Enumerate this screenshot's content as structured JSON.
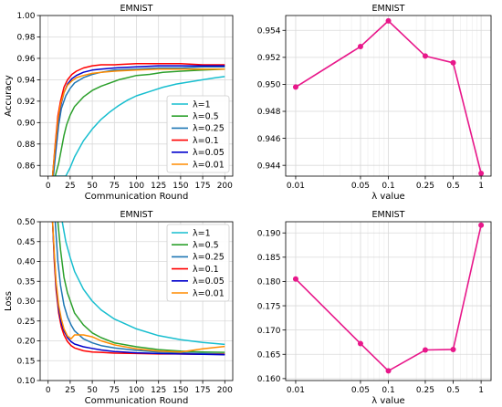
{
  "chart_data": [
    {
      "type": "line",
      "title": "EMNIST",
      "xlabel": "Communication Round",
      "ylabel": "Accuracy",
      "xlim": [
        -9,
        209
      ],
      "ylim": [
        0.85,
        1.0
      ],
      "xticks": [
        0,
        25,
        50,
        75,
        100,
        125,
        150,
        175,
        200
      ],
      "yticks": [
        0.86,
        0.88,
        0.9,
        0.92,
        0.94,
        0.96,
        0.98,
        1.0
      ],
      "ytick_labels": [
        "0.86",
        "0.88",
        "0.90",
        "0.92",
        "0.94",
        "0.96",
        "0.98",
        "1.00"
      ],
      "grid": true,
      "legend": "lower right",
      "series": [
        {
          "name": "λ=1",
          "color": "#17becf",
          "x": [
            5,
            10,
            15,
            20,
            25,
            30,
            40,
            50,
            60,
            70,
            80,
            90,
            100,
            115,
            130,
            145,
            160,
            175,
            190,
            200
          ],
          "y": [
            0.85,
            0.85,
            0.85,
            0.85,
            0.858,
            0.868,
            0.883,
            0.894,
            0.903,
            0.91,
            0.916,
            0.921,
            0.925,
            0.929,
            0.933,
            0.936,
            0.938,
            0.94,
            0.942,
            0.943
          ]
        },
        {
          "name": "λ=0.5",
          "color": "#2ca02c",
          "x": [
            8,
            12,
            15,
            18,
            21,
            25,
            30,
            40,
            50,
            60,
            70,
            80,
            90,
            100,
            115,
            130,
            150,
            175,
            200
          ],
          "y": [
            0.85,
            0.862,
            0.875,
            0.888,
            0.898,
            0.907,
            0.915,
            0.924,
            0.93,
            0.934,
            0.937,
            0.94,
            0.942,
            0.944,
            0.945,
            0.947,
            0.948,
            0.949,
            0.95
          ]
        },
        {
          "name": "λ=0.25",
          "color": "#1f77b4",
          "x": [
            6,
            9,
            12,
            15,
            20,
            25,
            30,
            40,
            50,
            60,
            75,
            100,
            125,
            150,
            175,
            200
          ],
          "y": [
            0.85,
            0.875,
            0.898,
            0.913,
            0.925,
            0.932,
            0.937,
            0.942,
            0.945,
            0.947,
            0.949,
            0.95,
            0.951,
            0.951,
            0.952,
            0.952
          ]
        },
        {
          "name": "λ=0.1",
          "color": "#ff0000",
          "x": [
            5,
            8,
            11,
            14,
            18,
            22,
            27,
            32,
            40,
            50,
            60,
            75,
            100,
            125,
            150,
            175,
            200
          ],
          "y": [
            0.85,
            0.88,
            0.906,
            0.92,
            0.933,
            0.94,
            0.945,
            0.948,
            0.951,
            0.953,
            0.954,
            0.954,
            0.955,
            0.955,
            0.955,
            0.954,
            0.954
          ]
        },
        {
          "name": "λ=0.05",
          "color": "#0000cc",
          "x": [
            5,
            8,
            11,
            14,
            18,
            22,
            27,
            32,
            40,
            50,
            60,
            75,
            100,
            125,
            150,
            175,
            200
          ],
          "y": [
            0.85,
            0.875,
            0.9,
            0.915,
            0.928,
            0.936,
            0.941,
            0.944,
            0.947,
            0.949,
            0.95,
            0.951,
            0.952,
            0.953,
            0.953,
            0.953,
            0.953
          ]
        },
        {
          "name": "λ=0.01",
          "color": "#ff8c00",
          "x": [
            5,
            8,
            11,
            14,
            18,
            22,
            27,
            32,
            40,
            50,
            60,
            75,
            100,
            125,
            150,
            175,
            200
          ],
          "y": [
            0.85,
            0.878,
            0.902,
            0.917,
            0.928,
            0.935,
            0.939,
            0.942,
            0.944,
            0.946,
            0.947,
            0.948,
            0.949,
            0.95,
            0.95,
            0.95,
            0.95
          ]
        }
      ]
    },
    {
      "type": "line",
      "title": "EMNIST",
      "xlabel": "λ  value",
      "ylabel": "",
      "xscale": "log",
      "x_categories": [
        "0.01",
        "0.05",
        "0.1",
        "0.25",
        "0.5",
        "1"
      ],
      "x": [
        0.01,
        0.05,
        0.1,
        0.25,
        0.5,
        1
      ],
      "xlim": [
        0.0078,
        1.28
      ],
      "ylim": [
        0.9432,
        0.9551
      ],
      "yticks": [
        0.944,
        0.946,
        0.948,
        0.95,
        0.952,
        0.954
      ],
      "ytick_labels": [
        "0.944",
        "0.946",
        "0.948",
        "0.950",
        "0.952",
        "0.954"
      ],
      "grid": true,
      "color": "#e8178a",
      "values": [
        0.9498,
        0.9528,
        0.9547,
        0.9521,
        0.9516,
        0.9434
      ]
    },
    {
      "type": "line",
      "title": "EMNIST",
      "xlabel": "Communication Round",
      "ylabel": "Loss",
      "xlim": [
        -9,
        209
      ],
      "ylim": [
        0.1,
        0.5
      ],
      "xticks": [
        0,
        25,
        50,
        75,
        100,
        125,
        150,
        175,
        200
      ],
      "yticks": [
        0.1,
        0.15,
        0.2,
        0.25,
        0.3,
        0.35,
        0.4,
        0.45,
        0.5
      ],
      "ytick_labels": [
        "0.10",
        "0.15",
        "0.20",
        "0.25",
        "0.30",
        "0.35",
        "0.40",
        "0.45",
        "0.50"
      ],
      "grid": true,
      "legend": "upper right",
      "series": [
        {
          "name": "λ=1",
          "color": "#17becf",
          "x": [
            16,
            20,
            25,
            30,
            40,
            50,
            60,
            75,
            100,
            125,
            150,
            175,
            200
          ],
          "y": [
            0.5,
            0.45,
            0.41,
            0.375,
            0.33,
            0.3,
            0.278,
            0.255,
            0.23,
            0.213,
            0.203,
            0.196,
            0.191
          ]
        },
        {
          "name": "λ=0.5",
          "color": "#2ca02c",
          "x": [
            11,
            14,
            18,
            22,
            26,
            30,
            40,
            50,
            60,
            75,
            100,
            125,
            150,
            175,
            200
          ],
          "y": [
            0.5,
            0.43,
            0.36,
            0.32,
            0.295,
            0.27,
            0.24,
            0.22,
            0.208,
            0.195,
            0.185,
            0.178,
            0.174,
            0.172,
            0.171
          ]
        },
        {
          "name": "λ=0.25",
          "color": "#1f77b4",
          "x": [
            8,
            11,
            14,
            18,
            22,
            26,
            30,
            40,
            50,
            60,
            75,
            100,
            125,
            150,
            175,
            200
          ],
          "y": [
            0.5,
            0.4,
            0.34,
            0.29,
            0.26,
            0.24,
            0.225,
            0.205,
            0.195,
            0.188,
            0.182,
            0.176,
            0.172,
            0.17,
            0.168,
            0.167
          ]
        },
        {
          "name": "λ=0.1",
          "color": "#ff0000",
          "x": [
            5,
            7,
            9,
            12,
            15,
            18,
            22,
            26,
            30,
            40,
            50,
            60,
            75,
            100,
            125,
            150,
            175,
            200
          ],
          "y": [
            0.5,
            0.4,
            0.33,
            0.27,
            0.235,
            0.215,
            0.198,
            0.188,
            0.182,
            0.175,
            0.172,
            0.171,
            0.169,
            0.168,
            0.167,
            0.167,
            0.166,
            0.166
          ]
        },
        {
          "name": "λ=0.05",
          "color": "#0000cc",
          "x": [
            5,
            7,
            9,
            12,
            15,
            18,
            22,
            26,
            30,
            40,
            50,
            60,
            75,
            100,
            125,
            150,
            175,
            200
          ],
          "y": [
            0.5,
            0.41,
            0.34,
            0.28,
            0.245,
            0.225,
            0.208,
            0.198,
            0.192,
            0.185,
            0.181,
            0.177,
            0.173,
            0.17,
            0.168,
            0.167,
            0.166,
            0.165
          ]
        },
        {
          "name": "λ=0.01",
          "color": "#ff8c00",
          "x": [
            5,
            7,
            9,
            12,
            15,
            18,
            22,
            26,
            30,
            40,
            50,
            60,
            75,
            100,
            125,
            150,
            175,
            200
          ],
          "y": [
            0.5,
            0.42,
            0.35,
            0.29,
            0.255,
            0.23,
            0.212,
            0.205,
            0.215,
            0.215,
            0.21,
            0.2,
            0.19,
            0.18,
            0.174,
            0.172,
            0.18,
            0.186
          ]
        }
      ]
    },
    {
      "type": "line",
      "title": "EMNIST",
      "xlabel": "λ  value",
      "ylabel": "",
      "xscale": "log",
      "x_categories": [
        "0.01",
        "0.05",
        "0.1",
        "0.25",
        "0.5",
        "1"
      ],
      "x": [
        0.01,
        0.05,
        0.1,
        0.25,
        0.5,
        1
      ],
      "xlim": [
        0.0078,
        1.28
      ],
      "ylim": [
        0.1596,
        0.1923
      ],
      "yticks": [
        0.16,
        0.165,
        0.17,
        0.175,
        0.18,
        0.185,
        0.19
      ],
      "ytick_labels": [
        "0.160",
        "0.165",
        "0.170",
        "0.175",
        "0.180",
        "0.185",
        "0.190"
      ],
      "grid": true,
      "color": "#e8178a",
      "values": [
        0.1805,
        0.1672,
        0.1616,
        0.1659,
        0.166,
        0.1916
      ]
    }
  ]
}
